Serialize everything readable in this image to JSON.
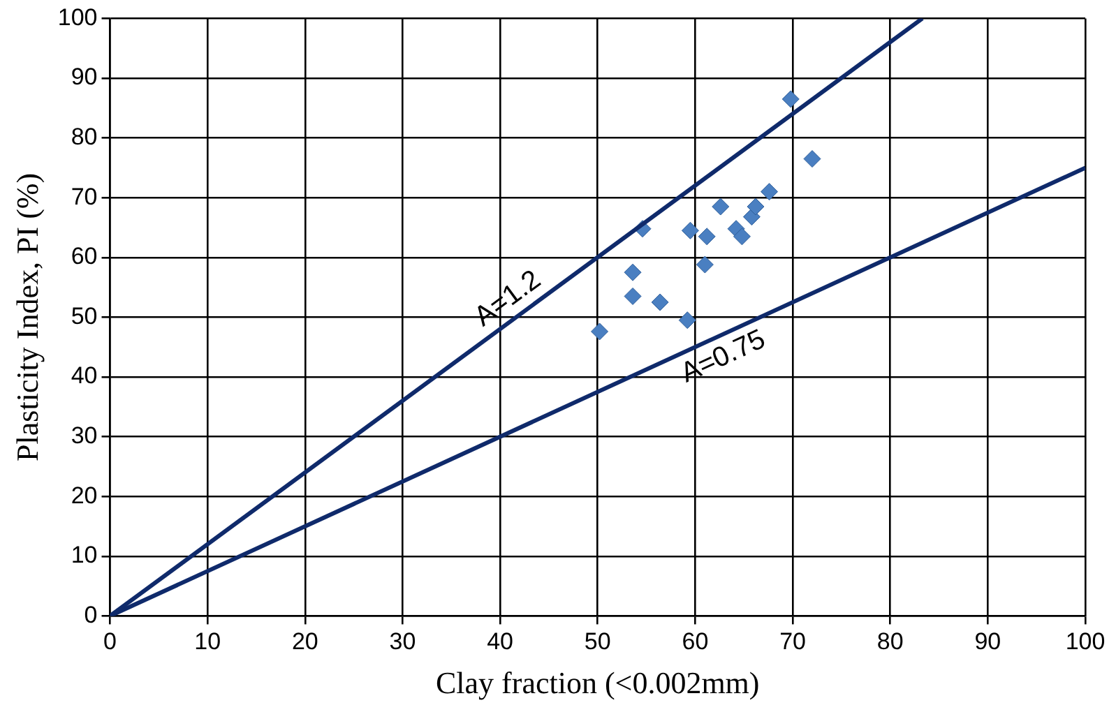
{
  "chart_data": {
    "type": "scatter",
    "xlabel": "Clay fraction (<0.002mm)",
    "ylabel": "Plasticity Index, PI (%)",
    "xlim": [
      0,
      100
    ],
    "xticks": [
      0,
      10,
      20,
      30,
      40,
      50,
      60,
      70,
      80,
      90,
      100
    ],
    "ylim": [
      0,
      100
    ],
    "yticks": [
      0,
      10,
      20,
      30,
      40,
      50,
      60,
      70,
      80,
      90,
      100
    ],
    "grid": true,
    "legend": false,
    "series": [
      {
        "type": "line",
        "color": "#0f2a6b",
        "marker": "none",
        "line_style": "solid",
        "x": [
          0,
          83.3
        ],
        "values": [
          0,
          100
        ]
      },
      {
        "type": "line",
        "color": "#0f2a6b",
        "marker": "none",
        "line_style": "solid",
        "x": [
          0,
          100
        ],
        "values": [
          0,
          75
        ]
      },
      {
        "type": "scatter",
        "color": "#4a7fc1",
        "marker": "diamond",
        "x": [
          50.2,
          53.6,
          53.6,
          54.6,
          56.4,
          59.2,
          59.5,
          61.0,
          61.2,
          62.6,
          64.2,
          64.8,
          65.8,
          66.2,
          67.6,
          69.8,
          72.0
        ],
        "values": [
          47.6,
          57.5,
          53.5,
          64.8,
          52.5,
          49.5,
          64.5,
          58.8,
          63.5,
          68.5,
          64.8,
          63.5,
          66.8,
          68.5,
          71.0,
          86.5,
          76.5
        ]
      }
    ],
    "annotations": [
      {
        "text": "A=1.2",
        "x": 42,
        "y": 50.4
      },
      {
        "text": "A=0.75",
        "x": 62,
        "y": 46.5
      }
    ]
  }
}
